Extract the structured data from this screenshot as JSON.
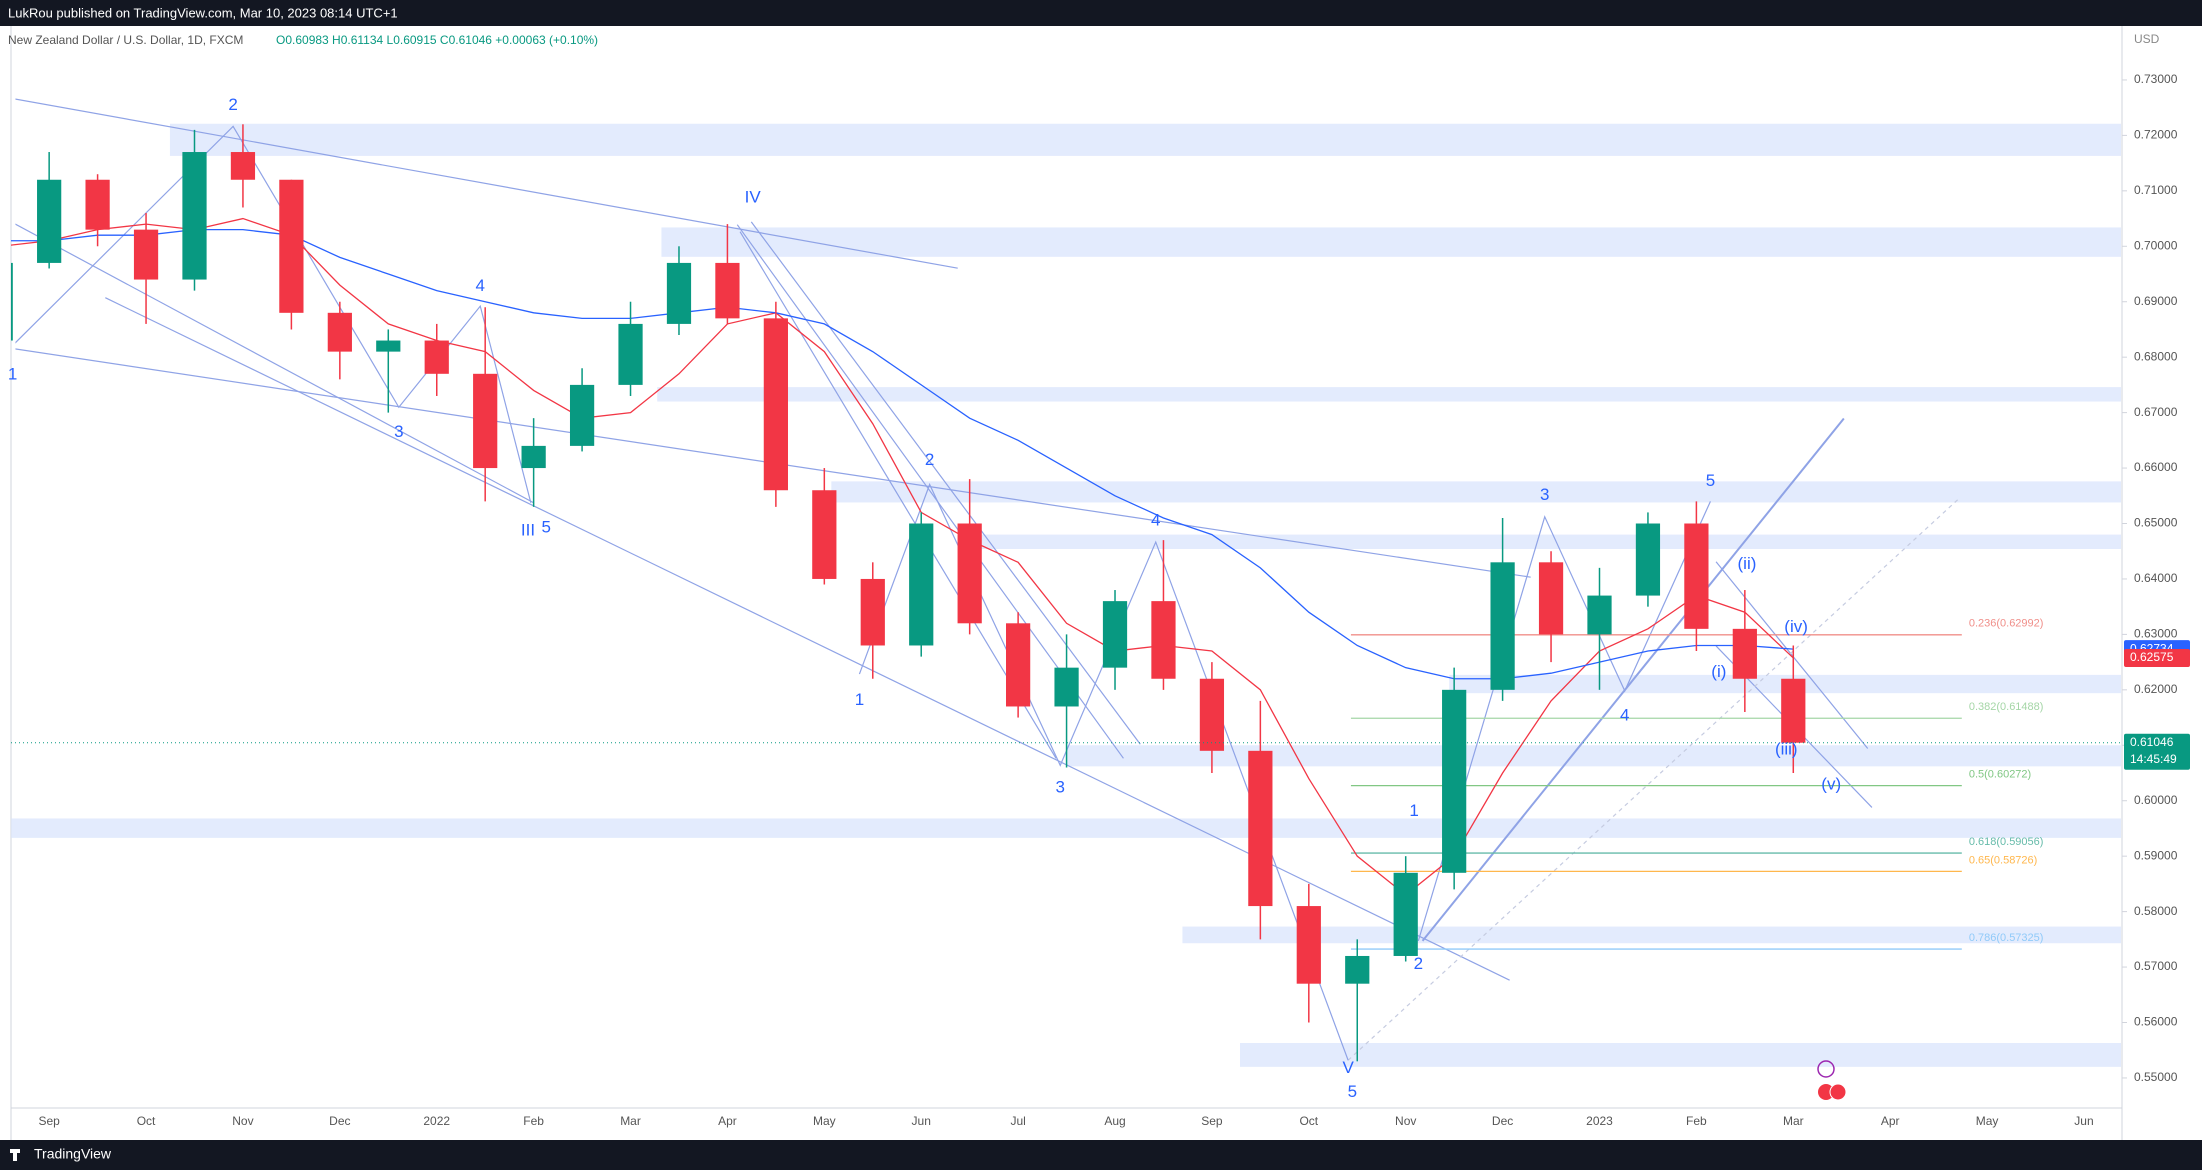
{
  "header": {
    "publisher": "LukRou published on TradingView.com, Mar 10, 2023 08:14 UTC+1",
    "footer": "TradingView"
  },
  "chart_data": {
    "type": "candlestick",
    "symbol": "New Zealand Dollar / U.S. Dollar, 1D, FXCM",
    "ohlc_text": "O0.60983 H0.61134 L0.60915 C0.61046 +0.00063 (+0.10%)",
    "currency": "USD",
    "categories": [
      null,
      "Sep",
      null,
      "Oct",
      null,
      "Nov",
      null,
      "Dec",
      null,
      "2022",
      null,
      "Feb",
      null,
      "Mar",
      null,
      "Apr",
      null,
      "May",
      null,
      "Jun",
      null,
      "Jul",
      null,
      "Aug",
      null,
      "Sep",
      null,
      "Oct",
      null,
      "Nov",
      null,
      "Dec",
      null,
      "2023",
      null,
      "Feb",
      null,
      "Mar",
      null,
      "Apr",
      null,
      "May",
      null,
      "Jun"
    ],
    "open": [
      0.683,
      0.697,
      0.712,
      0.703,
      0.694,
      0.717,
      0.712,
      0.688,
      0.681,
      0.683,
      0.677,
      0.66,
      0.664,
      0.675,
      0.686,
      0.697,
      0.687,
      0.656,
      0.64,
      0.628,
      0.65,
      0.632,
      0.617,
      0.624,
      0.636,
      0.622,
      0.609,
      0.581,
      0.567,
      0.572,
      0.587,
      0.62,
      0.643,
      0.63,
      0.637,
      0.65,
      0.631,
      0.622,
      null,
      null,
      null,
      null,
      null,
      null
    ],
    "high": [
      0.699,
      0.717,
      0.713,
      0.706,
      0.721,
      0.722,
      0.712,
      0.69,
      0.685,
      0.686,
      0.689,
      0.669,
      0.678,
      0.69,
      0.7,
      0.704,
      0.69,
      0.66,
      0.643,
      0.652,
      0.658,
      0.634,
      0.63,
      0.638,
      0.647,
      0.625,
      0.618,
      0.585,
      0.575,
      0.59,
      0.624,
      0.651,
      0.645,
      0.642,
      0.652,
      0.654,
      0.638,
      0.628,
      null,
      null,
      null,
      null,
      null,
      null
    ],
    "low": [
      0.681,
      0.696,
      0.7,
      0.686,
      0.692,
      0.707,
      0.685,
      0.676,
      0.67,
      0.673,
      0.654,
      0.653,
      0.663,
      0.673,
      0.684,
      0.686,
      0.653,
      0.639,
      0.622,
      0.626,
      0.63,
      0.615,
      0.606,
      0.62,
      0.62,
      0.605,
      0.575,
      0.56,
      0.553,
      0.571,
      0.584,
      0.618,
      0.625,
      0.62,
      0.635,
      0.627,
      0.616,
      0.605,
      null,
      null,
      null,
      null,
      null,
      null
    ],
    "close": [
      0.697,
      0.712,
      0.703,
      0.694,
      0.717,
      0.712,
      0.688,
      0.681,
      0.683,
      0.677,
      0.66,
      0.664,
      0.675,
      0.686,
      0.697,
      0.687,
      0.656,
      0.64,
      0.628,
      0.65,
      0.632,
      0.617,
      0.624,
      0.636,
      0.622,
      0.609,
      0.581,
      0.567,
      0.572,
      0.587,
      0.62,
      0.643,
      0.63,
      0.637,
      0.65,
      0.631,
      0.622,
      0.61046,
      null,
      null,
      null,
      null,
      null,
      null
    ],
    "up_color": "#089981",
    "down_color": "#f23645",
    "moving_averages": [
      {
        "color": "#f23645",
        "values": [
          0.7,
          0.701,
          0.703,
          0.704,
          0.703,
          0.705,
          0.702,
          0.693,
          0.686,
          0.683,
          0.681,
          0.674,
          0.669,
          0.67,
          0.677,
          0.686,
          0.688,
          0.681,
          0.668,
          0.652,
          0.647,
          0.643,
          0.632,
          0.627,
          0.628,
          0.627,
          0.62,
          0.604,
          0.59,
          0.583,
          0.59,
          0.605,
          0.618,
          0.627,
          0.631,
          0.637,
          0.634,
          0.62575,
          null,
          null,
          null,
          null,
          null,
          null
        ]
      },
      {
        "color": "#2962ff",
        "values": [
          0.701,
          0.701,
          0.702,
          0.702,
          0.703,
          0.703,
          0.702,
          0.698,
          0.695,
          0.692,
          0.69,
          0.688,
          0.687,
          0.687,
          0.688,
          0.689,
          0.688,
          0.686,
          0.681,
          0.675,
          0.669,
          0.665,
          0.66,
          0.655,
          0.651,
          0.648,
          0.642,
          0.634,
          0.628,
          0.624,
          0.622,
          0.622,
          0.623,
          0.625,
          0.627,
          0.628,
          0.628,
          0.62734,
          null,
          null,
          null,
          null,
          null,
          null
        ]
      }
    ],
    "price_tags": [
      {
        "value": 0.62734,
        "color": "#2962ff"
      },
      {
        "value": 0.62575,
        "color": "#f23645"
      },
      {
        "value": 0.61046,
        "color": "#089981",
        "countdown": "14:45:49"
      }
    ],
    "zones": [
      [
        0.7163,
        0.7221
      ],
      [
        0.6981,
        0.7034
      ],
      [
        0.672,
        0.6746
      ],
      [
        0.6538,
        0.6576
      ],
      [
        0.6454,
        0.648
      ],
      [
        0.6194,
        0.6227
      ],
      [
        0.6062,
        0.61
      ],
      [
        0.5933,
        0.5968
      ],
      [
        0.5743,
        0.5773
      ],
      [
        0.552,
        0.5563
      ]
    ],
    "fib_levels": [
      {
        "label": "0.236(0.62992)",
        "value": 0.62992,
        "color": "#f08f8a"
      },
      {
        "label": "0.382(0.61488)",
        "value": 0.61488,
        "color": "#a5d6a7"
      },
      {
        "label": "0.5(0.60272)",
        "value": 0.60272,
        "color": "#81c784"
      },
      {
        "label": "0.618(0.59056)",
        "value": 0.59056,
        "color": "#66bbaa"
      },
      {
        "label": "0.65(0.58726)",
        "value": 0.58726,
        "color": "#ffb74d"
      },
      {
        "label": "0.786(0.57325)",
        "value": 0.57325,
        "color": "#90caf9"
      }
    ],
    "wave_labels": [
      "1",
      "2",
      "3",
      "4",
      "5",
      "III",
      "IV",
      "1",
      "2",
      "3",
      "4",
      "V",
      "5",
      "1",
      "2",
      "3",
      "4",
      "5",
      "(i)",
      "(ii)",
      "(iii)",
      "(iv)",
      "(v)"
    ],
    "ylim": [
      0.54494,
      0.73937
    ],
    "yticks": [
      {
        "value": 0.55,
        "label": "0.55000"
      },
      {
        "value": 0.56,
        "label": "0.56000"
      },
      {
        "value": 0.57,
        "label": "0.57000"
      },
      {
        "value": 0.58,
        "label": "0.58000"
      },
      {
        "value": 0.59,
        "label": "0.59000"
      },
      {
        "value": 0.6,
        "label": "0.60000"
      },
      {
        "value": 0.61,
        "label": "0.61000"
      },
      {
        "value": 0.62,
        "label": "0.62000"
      },
      {
        "value": 0.63,
        "label": "0.63000"
      },
      {
        "value": 0.64,
        "label": "0.64000"
      },
      {
        "value": 0.65,
        "label": "0.65000"
      },
      {
        "value": 0.66,
        "label": "0.66000"
      },
      {
        "value": 0.67,
        "label": "0.67000"
      },
      {
        "value": 0.68,
        "label": "0.68000"
      },
      {
        "value": 0.69,
        "label": "0.69000"
      },
      {
        "value": 0.7,
        "label": "0.70000"
      },
      {
        "value": 0.71,
        "label": "0.71000"
      },
      {
        "value": 0.72,
        "label": "0.72000"
      },
      {
        "value": 0.73,
        "label": "0.73000"
      }
    ]
  }
}
